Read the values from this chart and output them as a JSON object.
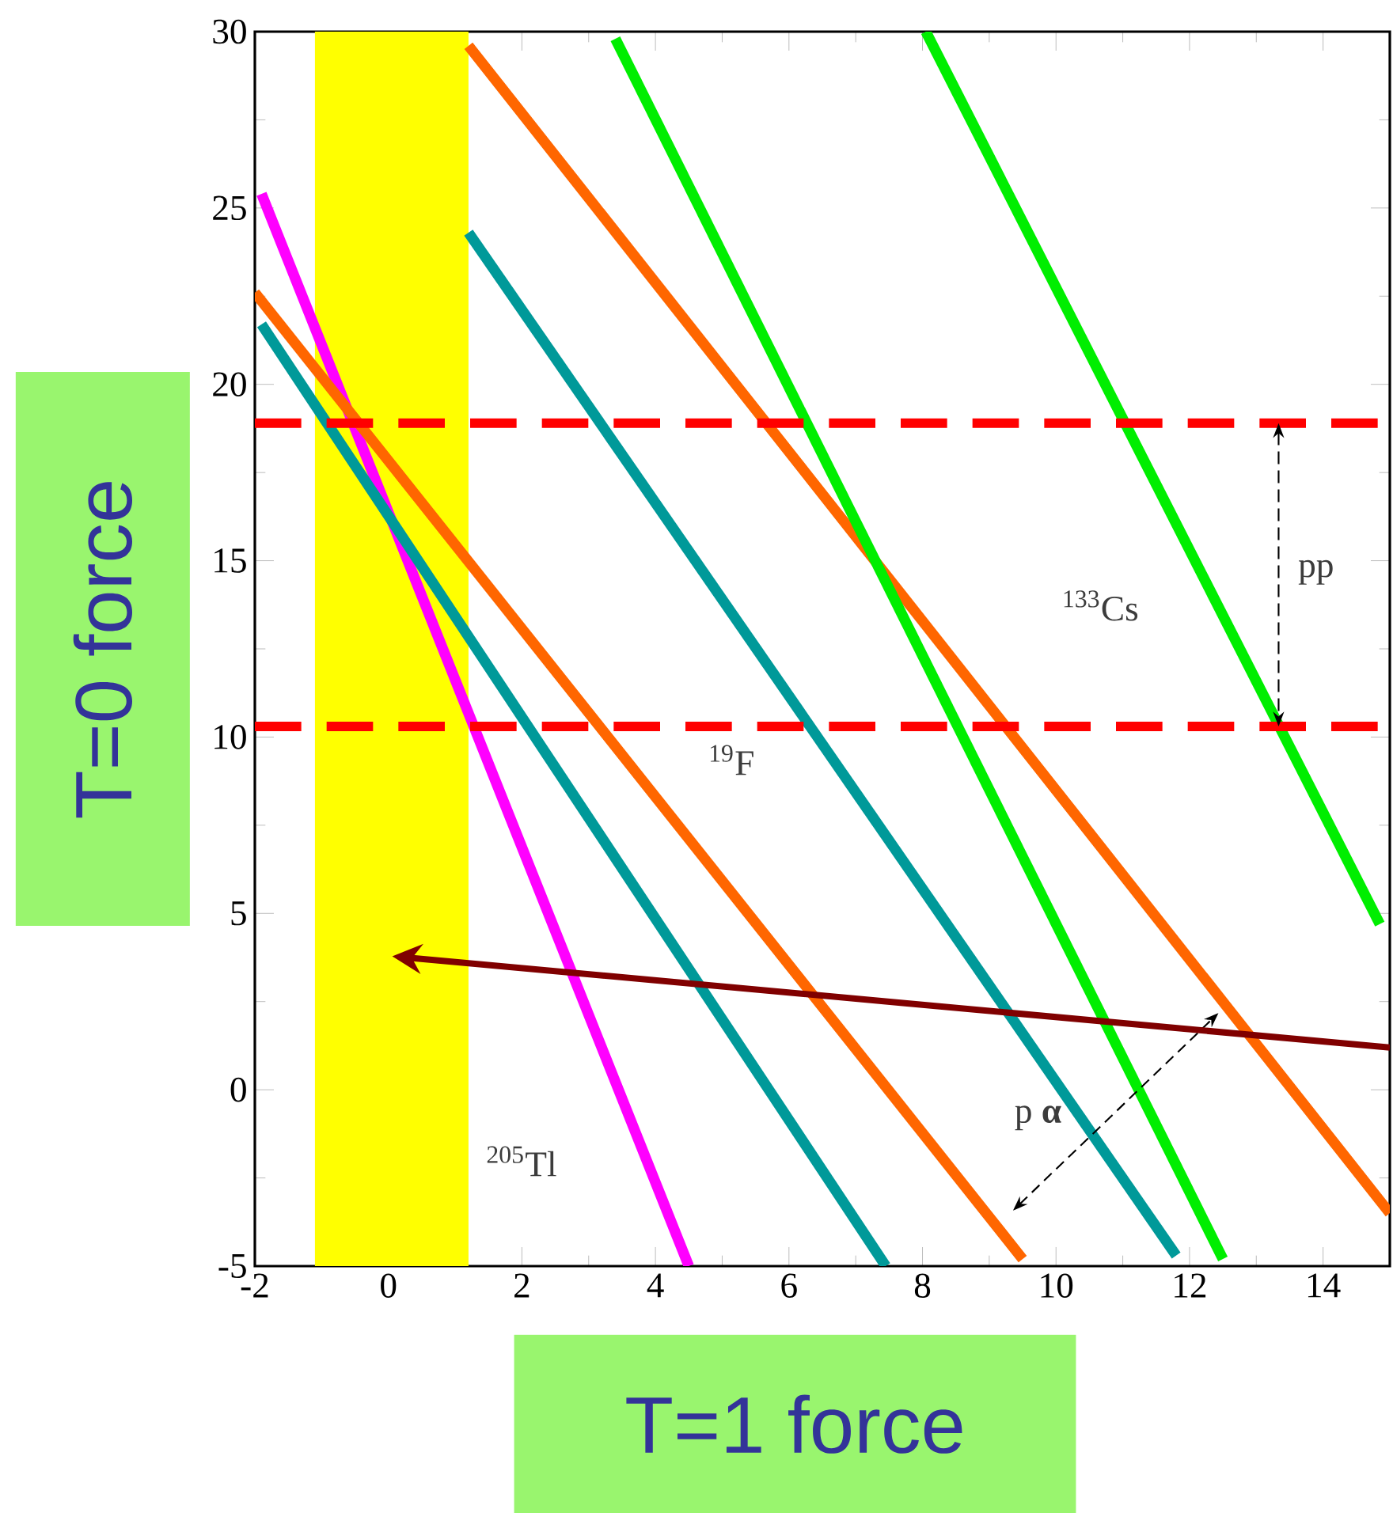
{
  "chart_data": {
    "type": "line",
    "xlabel": "T=1 force",
    "ylabel": "T=0 force",
    "xlim": [
      -2,
      15
    ],
    "ylim": [
      -5,
      30
    ],
    "xticks": [
      -2,
      0,
      2,
      4,
      6,
      8,
      10,
      12,
      14
    ],
    "yticks": [
      -5,
      0,
      5,
      10,
      15,
      20,
      25,
      30
    ],
    "grid": false,
    "line_style": "solid",
    "series": [
      {
        "color": "#ff00ff",
        "x": [
          -1.9,
          4.5
        ],
        "values": [
          25.4,
          -5
        ]
      },
      {
        "color": "#009999",
        "x": [
          -1.9,
          7.45
        ],
        "values": [
          21.7,
          -5
        ]
      },
      {
        "color": "#009999",
        "x": [
          1.2,
          11.8
        ],
        "values": [
          24.3,
          -4.7
        ]
      },
      {
        "color": "#ff6600",
        "x": [
          -2,
          9.5
        ],
        "values": [
          22.6,
          -4.8
        ]
      },
      {
        "color": "#ff6600",
        "x": [
          1.2,
          15
        ],
        "values": [
          29.6,
          -3.5
        ]
      },
      {
        "color": "#00ee00",
        "x": [
          3.4,
          12.5
        ],
        "values": [
          29.8,
          -4.8
        ]
      },
      {
        "color": "#00ee00",
        "x": [
          8.05,
          14.85
        ],
        "values": [
          30,
          4.7
        ]
      }
    ],
    "ref_lines": [
      {
        "axis": "y",
        "value": 18.9,
        "color": "#ff0000",
        "line_style": "dashed"
      },
      {
        "axis": "y",
        "value": 10.3,
        "color": "#ff0000",
        "line_style": "dashed"
      }
    ],
    "bands": [
      {
        "axis": "x",
        "from": -1.1,
        "to": 1.2,
        "color": "#ffff00"
      }
    ],
    "annotations": [
      "pp",
      "$^{133}$Cs",
      "$^{19}$F",
      "$^{205}$Tl",
      "p **α**"
    ]
  }
}
